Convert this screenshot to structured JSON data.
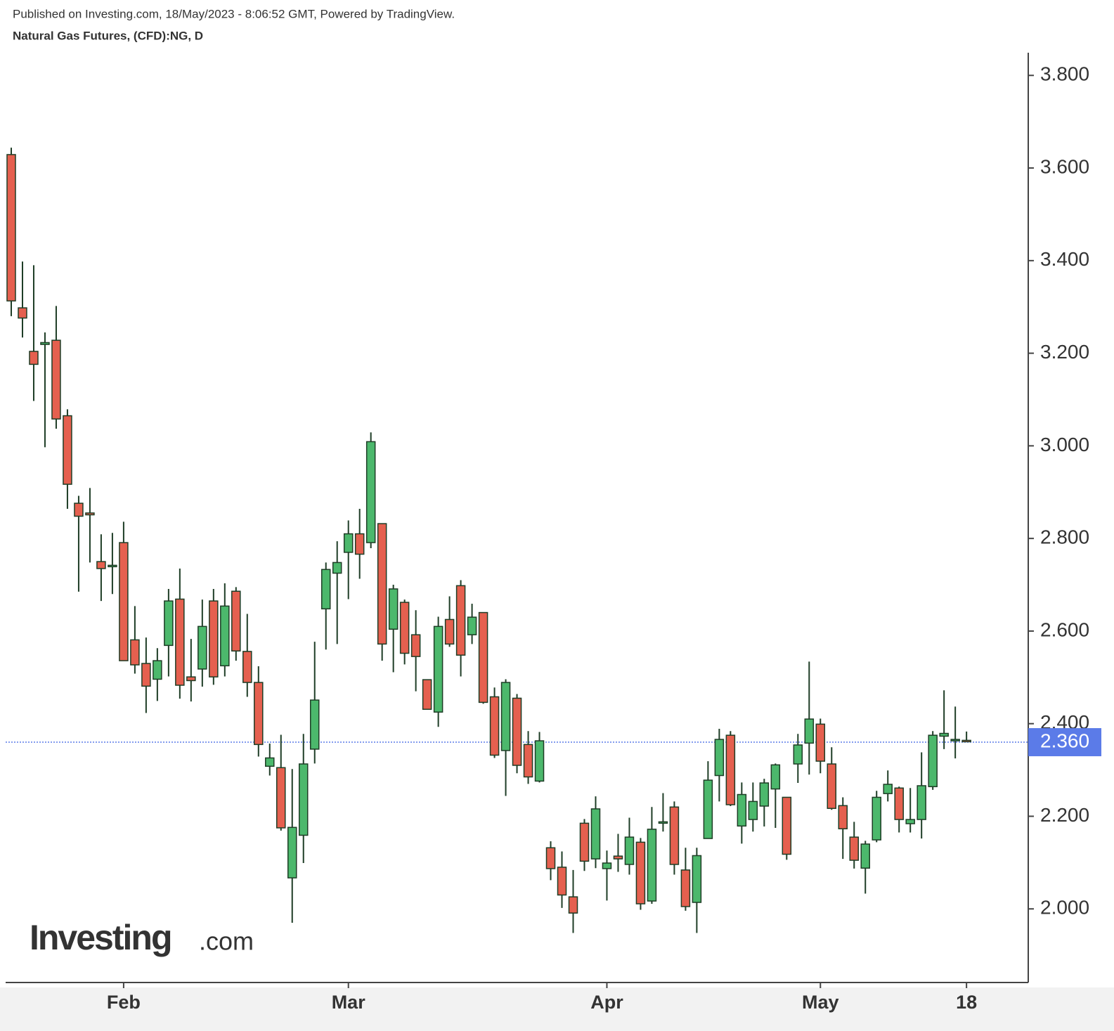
{
  "subtitle": "Published on Investing.com, 18/May/2023 - 8:06:52 GMT, Powered by TradingView.",
  "logo": {
    "brand": "Investing",
    "suffix": ".com"
  },
  "chart_data": {
    "type": "candlestick",
    "title": "Natural Gas Futures, (CFD):NG, D",
    "categories": [
      null,
      null,
      null,
      null,
      null,
      null,
      null,
      null,
      null,
      null,
      "Feb",
      null,
      null,
      null,
      null,
      null,
      null,
      null,
      null,
      null,
      null,
      null,
      null,
      null,
      null,
      null,
      null,
      null,
      null,
      null,
      "Mar",
      null,
      null,
      null,
      null,
      null,
      null,
      null,
      null,
      null,
      null,
      null,
      null,
      null,
      null,
      null,
      null,
      null,
      null,
      null,
      null,
      null,
      null,
      "Apr",
      null,
      null,
      null,
      null,
      null,
      null,
      null,
      null,
      null,
      null,
      null,
      null,
      null,
      null,
      null,
      null,
      null,
      null,
      "May",
      null,
      null,
      null,
      null,
      null,
      null,
      null,
      null,
      null,
      null,
      null,
      null,
      "18"
    ],
    "open": [
      3.629,
      3.298,
      3.204,
      3.219,
      3.228,
      3.065,
      2.876,
      2.855,
      2.75,
      2.739,
      2.791,
      2.581,
      2.53,
      2.496,
      2.569,
      2.669,
      2.501,
      2.518,
      2.665,
      2.525,
      2.686,
      2.556,
      2.489,
      2.308,
      2.305,
      2.067,
      2.159,
      2.345,
      2.648,
      2.725,
      2.77,
      2.81,
      2.791,
      2.832,
      2.604,
      2.662,
      2.592,
      2.495,
      2.425,
      2.625,
      2.698,
      2.592,
      2.64,
      2.458,
      2.342,
      2.455,
      2.355,
      2.276,
      2.132,
      2.09,
      2.026,
      2.185,
      2.108,
      2.087,
      2.114,
      2.096,
      2.144,
      2.017,
      2.185,
      2.22,
      2.084,
      2.014,
      2.152,
      2.288,
      2.375,
      2.179,
      2.193,
      2.222,
      2.259,
      2.241,
      2.313,
      2.358,
      2.399,
      2.313,
      2.223,
      2.155,
      2.088,
      2.149,
      2.249,
      2.261,
      2.184,
      2.193,
      2.264,
      2.373,
      2.363,
      2.364
    ],
    "high": [
      3.644,
      3.398,
      3.39,
      3.245,
      3.302,
      3.079,
      2.892,
      2.909,
      2.809,
      2.812,
      2.836,
      2.654,
      2.586,
      2.563,
      2.691,
      2.735,
      2.583,
      2.668,
      2.691,
      2.703,
      2.695,
      2.637,
      2.524,
      2.357,
      2.376,
      2.302,
      2.378,
      2.577,
      2.748,
      2.794,
      2.839,
      2.864,
      3.029,
      2.832,
      2.7,
      2.668,
      2.645,
      2.495,
      2.631,
      2.675,
      2.71,
      2.659,
      2.64,
      2.478,
      2.496,
      2.464,
      2.384,
      2.382,
      2.146,
      2.124,
      2.084,
      2.194,
      2.243,
      2.126,
      2.162,
      2.197,
      2.153,
      2.22,
      2.25,
      2.232,
      2.132,
      2.132,
      2.319,
      2.389,
      2.384,
      2.273,
      2.273,
      2.281,
      2.314,
      2.241,
      2.378,
      2.534,
      2.411,
      2.349,
      2.241,
      2.188,
      2.147,
      2.255,
      2.299,
      2.264,
      2.261,
      2.338,
      2.384,
      2.472,
      2.437,
      2.383
    ],
    "low": [
      3.28,
      3.234,
      3.097,
      2.997,
      3.037,
      2.864,
      2.685,
      2.748,
      2.665,
      2.68,
      2.536,
      2.508,
      2.423,
      2.449,
      2.502,
      2.454,
      2.448,
      2.48,
      2.484,
      2.502,
      2.536,
      2.458,
      2.329,
      2.288,
      2.169,
      1.97,
      2.099,
      2.314,
      2.56,
      2.572,
      2.669,
      2.713,
      2.779,
      2.536,
      2.511,
      2.528,
      2.47,
      2.43,
      2.393,
      2.566,
      2.502,
      2.572,
      2.443,
      2.326,
      2.244,
      2.293,
      2.27,
      2.273,
      2.062,
      2.002,
      1.948,
      2.082,
      2.088,
      2.018,
      2.08,
      2.074,
      1.998,
      2.011,
      2.167,
      2.074,
      1.996,
      1.948,
      2.152,
      2.232,
      2.222,
      2.141,
      2.167,
      2.178,
      2.175,
      2.106,
      2.272,
      2.29,
      2.293,
      2.214,
      2.108,
      2.087,
      2.033,
      2.144,
      2.232,
      2.165,
      2.165,
      2.152,
      2.257,
      2.345,
      2.325,
      2.361
    ],
    "close": [
      3.313,
      3.276,
      3.176,
      3.223,
      3.058,
      2.917,
      2.848,
      2.851,
      2.735,
      2.742,
      2.536,
      2.527,
      2.481,
      2.536,
      2.665,
      2.483,
      2.493,
      2.61,
      2.501,
      2.654,
      2.557,
      2.489,
      2.355,
      2.326,
      2.175,
      2.176,
      2.313,
      2.451,
      2.733,
      2.748,
      2.81,
      2.766,
      3.009,
      2.572,
      2.691,
      2.552,
      2.545,
      2.431,
      2.61,
      2.572,
      2.548,
      2.63,
      2.446,
      2.332,
      2.489,
      2.31,
      2.285,
      2.363,
      2.087,
      2.03,
      1.991,
      2.103,
      2.216,
      2.099,
      2.108,
      2.155,
      2.011,
      2.172,
      2.188,
      2.096,
      2.005,
      2.115,
      2.278,
      2.366,
      2.225,
      2.247,
      2.232,
      2.272,
      2.311,
      2.118,
      2.354,
      2.41,
      2.319,
      2.217,
      2.173,
      2.105,
      2.14,
      2.241,
      2.269,
      2.193,
      2.193,
      2.266,
      2.375,
      2.379,
      2.366,
      2.361
    ],
    "up_color": "#4cb86c",
    "down_color": "#e5604f",
    "wick_color": "#1e3d26",
    "ylim": [
      1.841,
      3.849
    ],
    "yticks": [
      {
        "value": 2.0,
        "label": "2.000"
      },
      {
        "value": 2.2,
        "label": "2.200"
      },
      {
        "value": 2.4,
        "label": "2.400"
      },
      {
        "value": 2.6,
        "label": "2.600"
      },
      {
        "value": 2.8,
        "label": "2.800"
      },
      {
        "value": 3.0,
        "label": "3.000"
      },
      {
        "value": 3.2,
        "label": "3.200"
      },
      {
        "value": 3.4,
        "label": "3.400"
      },
      {
        "value": 3.6,
        "label": "3.600"
      },
      {
        "value": 3.8,
        "label": "3.800"
      }
    ],
    "last_price": {
      "value": 2.36,
      "label": "2.360"
    },
    "last_price_color": "#5b7be8",
    "grid": false
  }
}
